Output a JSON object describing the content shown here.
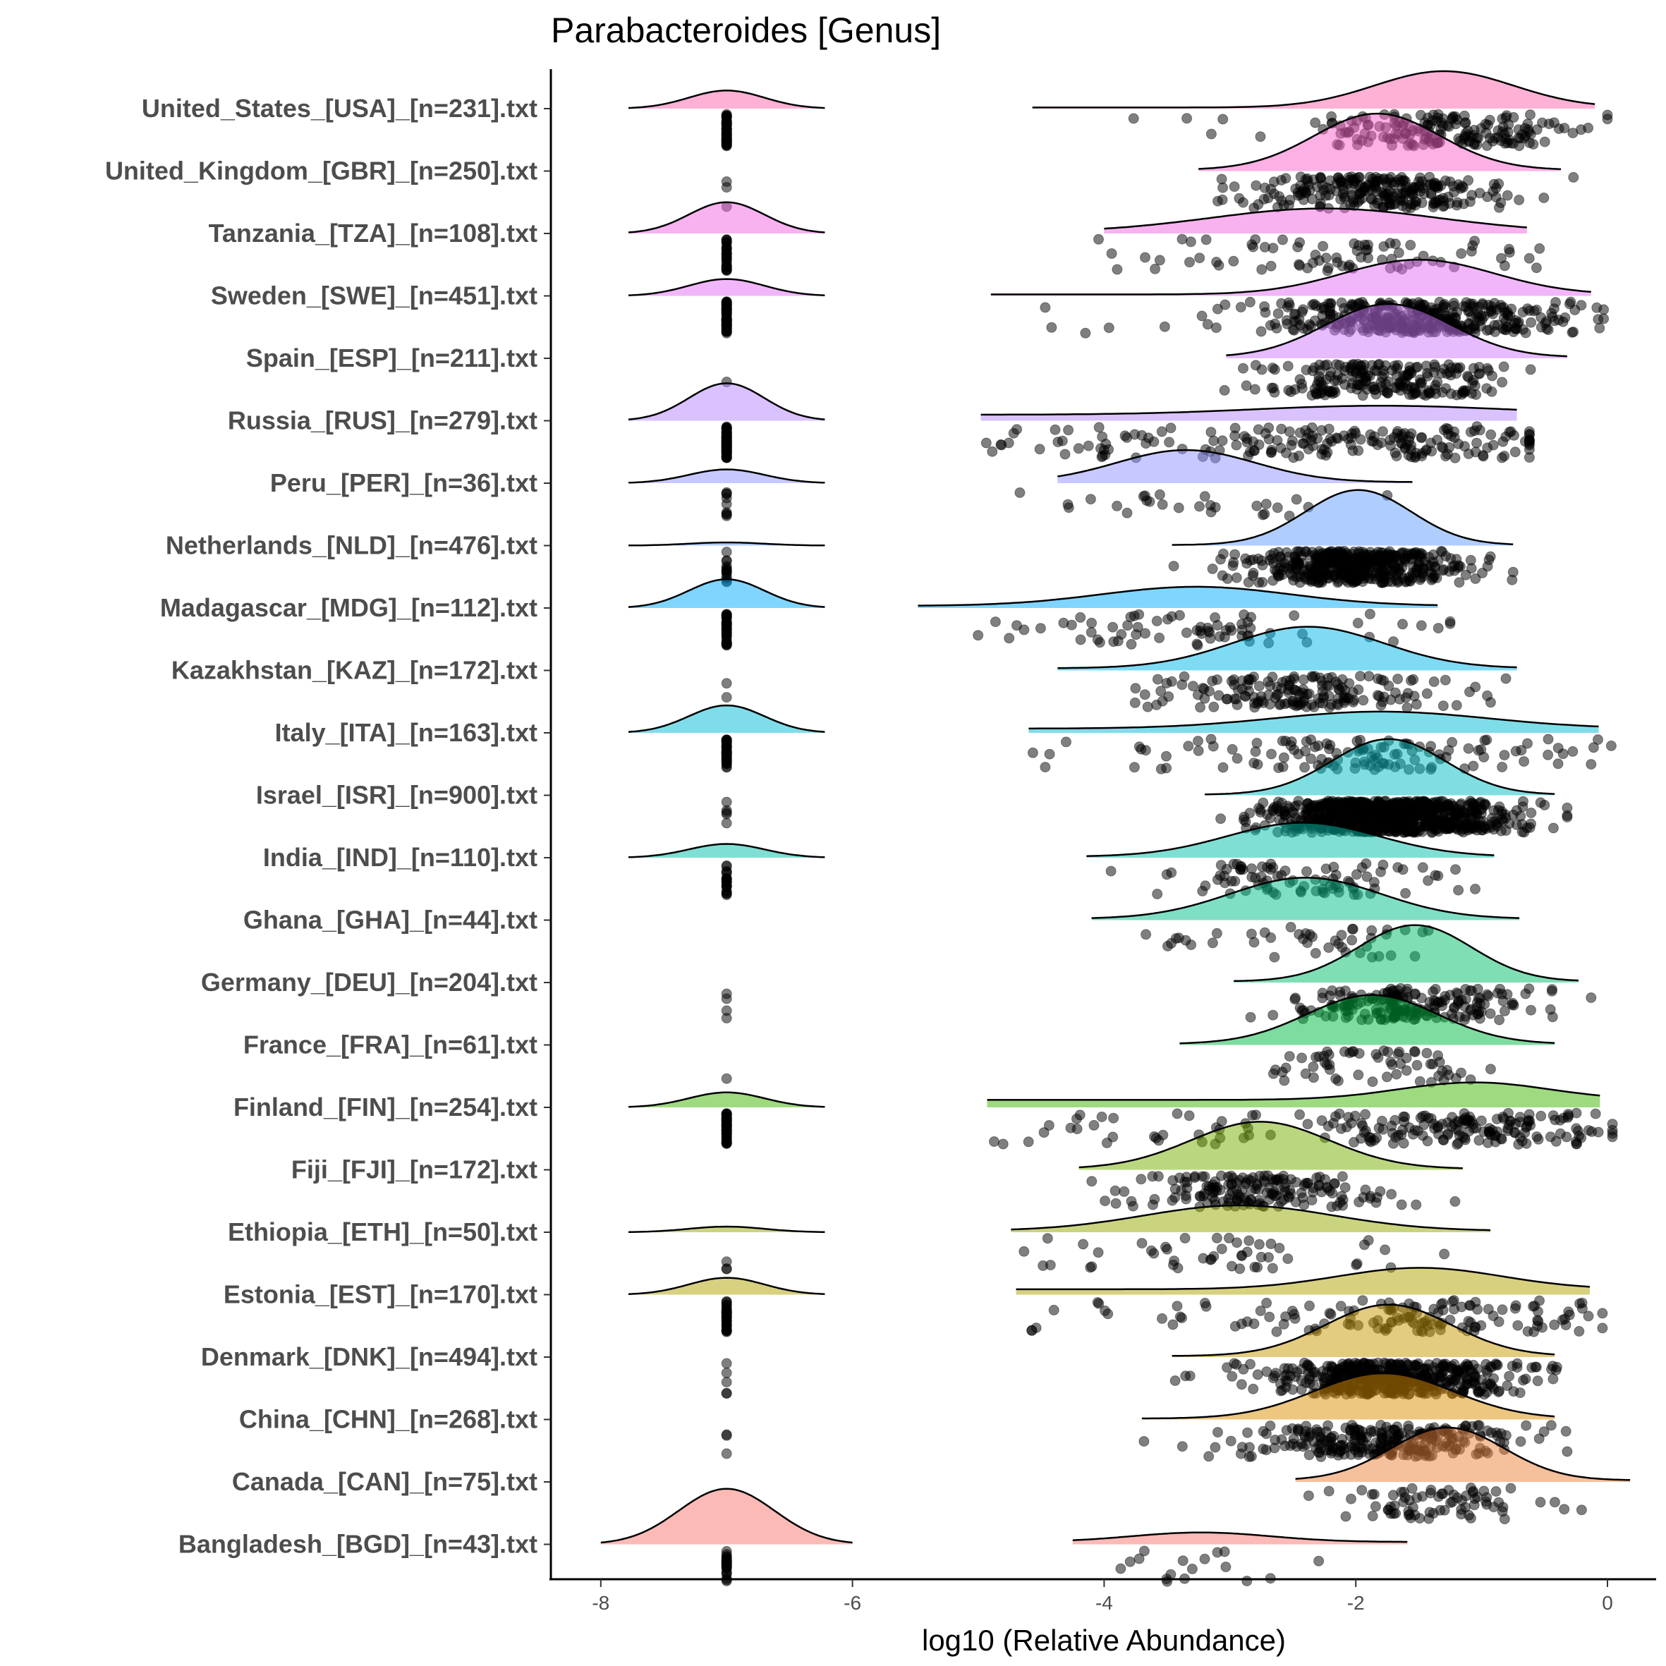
{
  "chart_data": {
    "type": "ridgeline-density-with-jittered-points",
    "title": "Parabacteroides [Genus]",
    "xlabel": "log10 (Relative Abundance)",
    "ylabel": "",
    "xlim": [
      -8.4,
      0.75
    ],
    "xticks": [
      -8,
      -6,
      -4,
      -2,
      0
    ],
    "xtick_labels": [
      "-8",
      "-6",
      "-4",
      "-2",
      "0"
    ],
    "zero_value": -7,
    "grid": false,
    "legend": "none",
    "series": [
      {
        "label": "United_States_[USA]_[n=231].txt",
        "n": 231,
        "color": "#FF64AC",
        "zero_frac": 0.25,
        "zero_h": 0.29,
        "mean": -1.3,
        "sd": 0.55,
        "lo": -4.57,
        "hi": -0.1,
        "h": 0.6,
        "tail": 0.03
      },
      {
        "label": "United_Kingdom_[GBR]_[n=250].txt",
        "n": 250,
        "color": "#FC61C8",
        "zero_frac": 0.012,
        "zero_h": 0,
        "mean": -1.83,
        "sd": 0.5,
        "lo": -3.25,
        "hi": -0.37,
        "h": 0.92,
        "tail": 0.02
      },
      {
        "label": "Tanzania_[TZA]_[n=108].txt",
        "n": 108,
        "color": "#F066E0",
        "zero_frac": 0.3,
        "zero_h": 0.5,
        "mean": -2.25,
        "sd": 0.9,
        "lo": -4.0,
        "hi": -0.64,
        "h": 0.4,
        "tail": 0.05
      },
      {
        "label": "Sweden_[SWE]_[n=451].txt",
        "n": 451,
        "color": "#E36EF6",
        "zero_frac": 0.15,
        "zero_h": 0.27,
        "mean": -1.5,
        "sd": 0.6,
        "lo": -4.9,
        "hi": -0.13,
        "h": 0.58,
        "tail": 0.04
      },
      {
        "label": "Spain_[ESP]_[n=211].txt",
        "n": 211,
        "color": "#CE79FF",
        "zero_frac": 0.005,
        "zero_h": 0,
        "mean": -1.74,
        "sd": 0.5,
        "lo": -3.03,
        "hi": -0.32,
        "h": 0.87,
        "tail": 0.02
      },
      {
        "label": "Russia_[RUS]_[n=279].txt",
        "n": 279,
        "color": "#B385FF",
        "zero_frac": 0.3,
        "zero_h": 0.6,
        "mean": -1.8,
        "sd": 1.0,
        "lo": -4.98,
        "hi": -0.72,
        "h": 0.24,
        "tail": 0.4
      },
      {
        "label": "Peru_[PER]_[n=36].txt",
        "n": 36,
        "color": "#8F91FF",
        "zero_frac": 0.25,
        "zero_h": 0.22,
        "mean": -3.35,
        "sd": 0.55,
        "lo": -4.37,
        "hi": -1.55,
        "h": 0.53,
        "tail": 0.03
      },
      {
        "label": "Netherlands_[NLD]_[n=476].txt",
        "n": 476,
        "color": "#619CFF",
        "zero_frac": 0.03,
        "zero_h": 0.05,
        "mean": -1.98,
        "sd": 0.42,
        "lo": -3.46,
        "hi": -0.75,
        "h": 0.89,
        "tail": 0.01
      },
      {
        "label": "Madagascar_[MDG]_[n=112].txt",
        "n": 112,
        "color": "#00ABFD",
        "zero_frac": 0.35,
        "zero_h": 0.46,
        "mean": -3.27,
        "sd": 0.75,
        "lo": -5.48,
        "hi": -1.35,
        "h": 0.34,
        "tail": 0.1
      },
      {
        "label": "Kazakhstan_[KAZ]_[n=172].txt",
        "n": 172,
        "color": "#00B5E9",
        "zero_frac": 0.01,
        "zero_h": 0,
        "mean": -2.38,
        "sd": 0.6,
        "lo": -4.37,
        "hi": -0.72,
        "h": 0.7,
        "tail": 0.05
      },
      {
        "label": "Italy_[ITA]_[n=163].txt",
        "n": 163,
        "color": "#00BCD6",
        "zero_frac": 0.25,
        "zero_h": 0.44,
        "mean": -1.8,
        "sd": 0.85,
        "lo": -4.6,
        "hi": -0.07,
        "h": 0.34,
        "tail": 0.2
      },
      {
        "label": "Israel_[ISR]_[n=900].txt",
        "n": 900,
        "color": "#00C0C2",
        "zero_frac": 0.005,
        "zero_h": 0,
        "mean": -1.74,
        "sd": 0.45,
        "lo": -3.2,
        "hi": -0.42,
        "h": 0.9,
        "tail": 0.01
      },
      {
        "label": "India_[IND]_[n=110].txt",
        "n": 110,
        "color": "#00C0A9",
        "zero_frac": 0.2,
        "zero_h": 0.22,
        "mean": -2.42,
        "sd": 0.6,
        "lo": -4.14,
        "hi": -0.9,
        "h": 0.56,
        "tail": 0.03
      },
      {
        "label": "Ghana_[GHA]_[n=44].txt",
        "n": 44,
        "color": "#00BF8C",
        "zero_frac": 0,
        "zero_h": 0,
        "mean": -2.4,
        "sd": 0.6,
        "lo": -4.1,
        "hi": -0.7,
        "h": 0.68,
        "tail": 0.03
      },
      {
        "label": "Germany_[DEU]_[n=204].txt",
        "n": 204,
        "color": "#00BD6A",
        "zero_frac": 0.02,
        "zero_h": 0,
        "mean": -1.53,
        "sd": 0.45,
        "lo": -2.97,
        "hi": -0.23,
        "h": 0.92,
        "tail": 0.02
      },
      {
        "label": "France_[FRA]_[n=61].txt",
        "n": 61,
        "color": "#00BA42",
        "zero_frac": 0.016,
        "zero_h": 0,
        "mean": -1.87,
        "sd": 0.52,
        "lo": -3.4,
        "hi": -0.42,
        "h": 0.8,
        "tail": 0.02
      },
      {
        "label": "Finland_[FIN]_[n=254].txt",
        "n": 254,
        "color": "#3EB500",
        "zero_frac": 0.22,
        "zero_h": 0.24,
        "mean": -1.06,
        "sd": 0.6,
        "lo": -4.93,
        "hi": -0.06,
        "h": 0.4,
        "tail": 0.3
      },
      {
        "label": "Fiji_[FJI]_[n=172].txt",
        "n": 172,
        "color": "#75B000",
        "zero_frac": 0,
        "zero_h": 0,
        "mean": -2.76,
        "sd": 0.55,
        "lo": -4.2,
        "hi": -1.15,
        "h": 0.77,
        "tail": 0.02
      },
      {
        "label": "Ethiopia_[ETH]_[n=50].txt",
        "n": 50,
        "color": "#96A900",
        "zero_frac": 0.06,
        "zero_h": 0.09,
        "mean": -2.93,
        "sd": 0.75,
        "lo": -4.74,
        "hi": -0.93,
        "h": 0.43,
        "tail": 0.05
      },
      {
        "label": "Estonia_[EST]_[n=170].txt",
        "n": 170,
        "color": "#B0A100",
        "zero_frac": 0.2,
        "zero_h": 0.27,
        "mean": -1.49,
        "sd": 0.65,
        "lo": -4.7,
        "hi": -0.14,
        "h": 0.43,
        "tail": 0.2
      },
      {
        "label": "Denmark_[DNK]_[n=494].txt",
        "n": 494,
        "color": "#C79800",
        "zero_frac": 0.01,
        "zero_h": 0,
        "mean": -1.74,
        "sd": 0.5,
        "lo": -3.46,
        "hi": -0.42,
        "h": 0.84,
        "tail": 0.02
      },
      {
        "label": "China_[CHN]_[n=268].txt",
        "n": 268,
        "color": "#DB8E00",
        "zero_frac": 0.01,
        "zero_h": 0,
        "mean": -1.78,
        "sd": 0.55,
        "lo": -3.7,
        "hi": -0.42,
        "h": 0.74,
        "tail": 0.02
      },
      {
        "label": "Canada_[CAN]_[n=75].txt",
        "n": 75,
        "color": "#EC8239",
        "zero_frac": 0,
        "zero_h": 0,
        "mean": -1.27,
        "sd": 0.45,
        "lo": -2.48,
        "hi": 0.18,
        "h": 0.87,
        "tail": 0.03
      },
      {
        "label": "Bangladesh_[BGD]_[n=43].txt",
        "n": 43,
        "color": "#F8766D",
        "zero_frac": 0.6,
        "zero_h": 0.89,
        "mean": -3.23,
        "sd": 0.55,
        "lo": -4.25,
        "hi": -1.59,
        "h": 0.19,
        "tail": 0.2
      }
    ]
  }
}
